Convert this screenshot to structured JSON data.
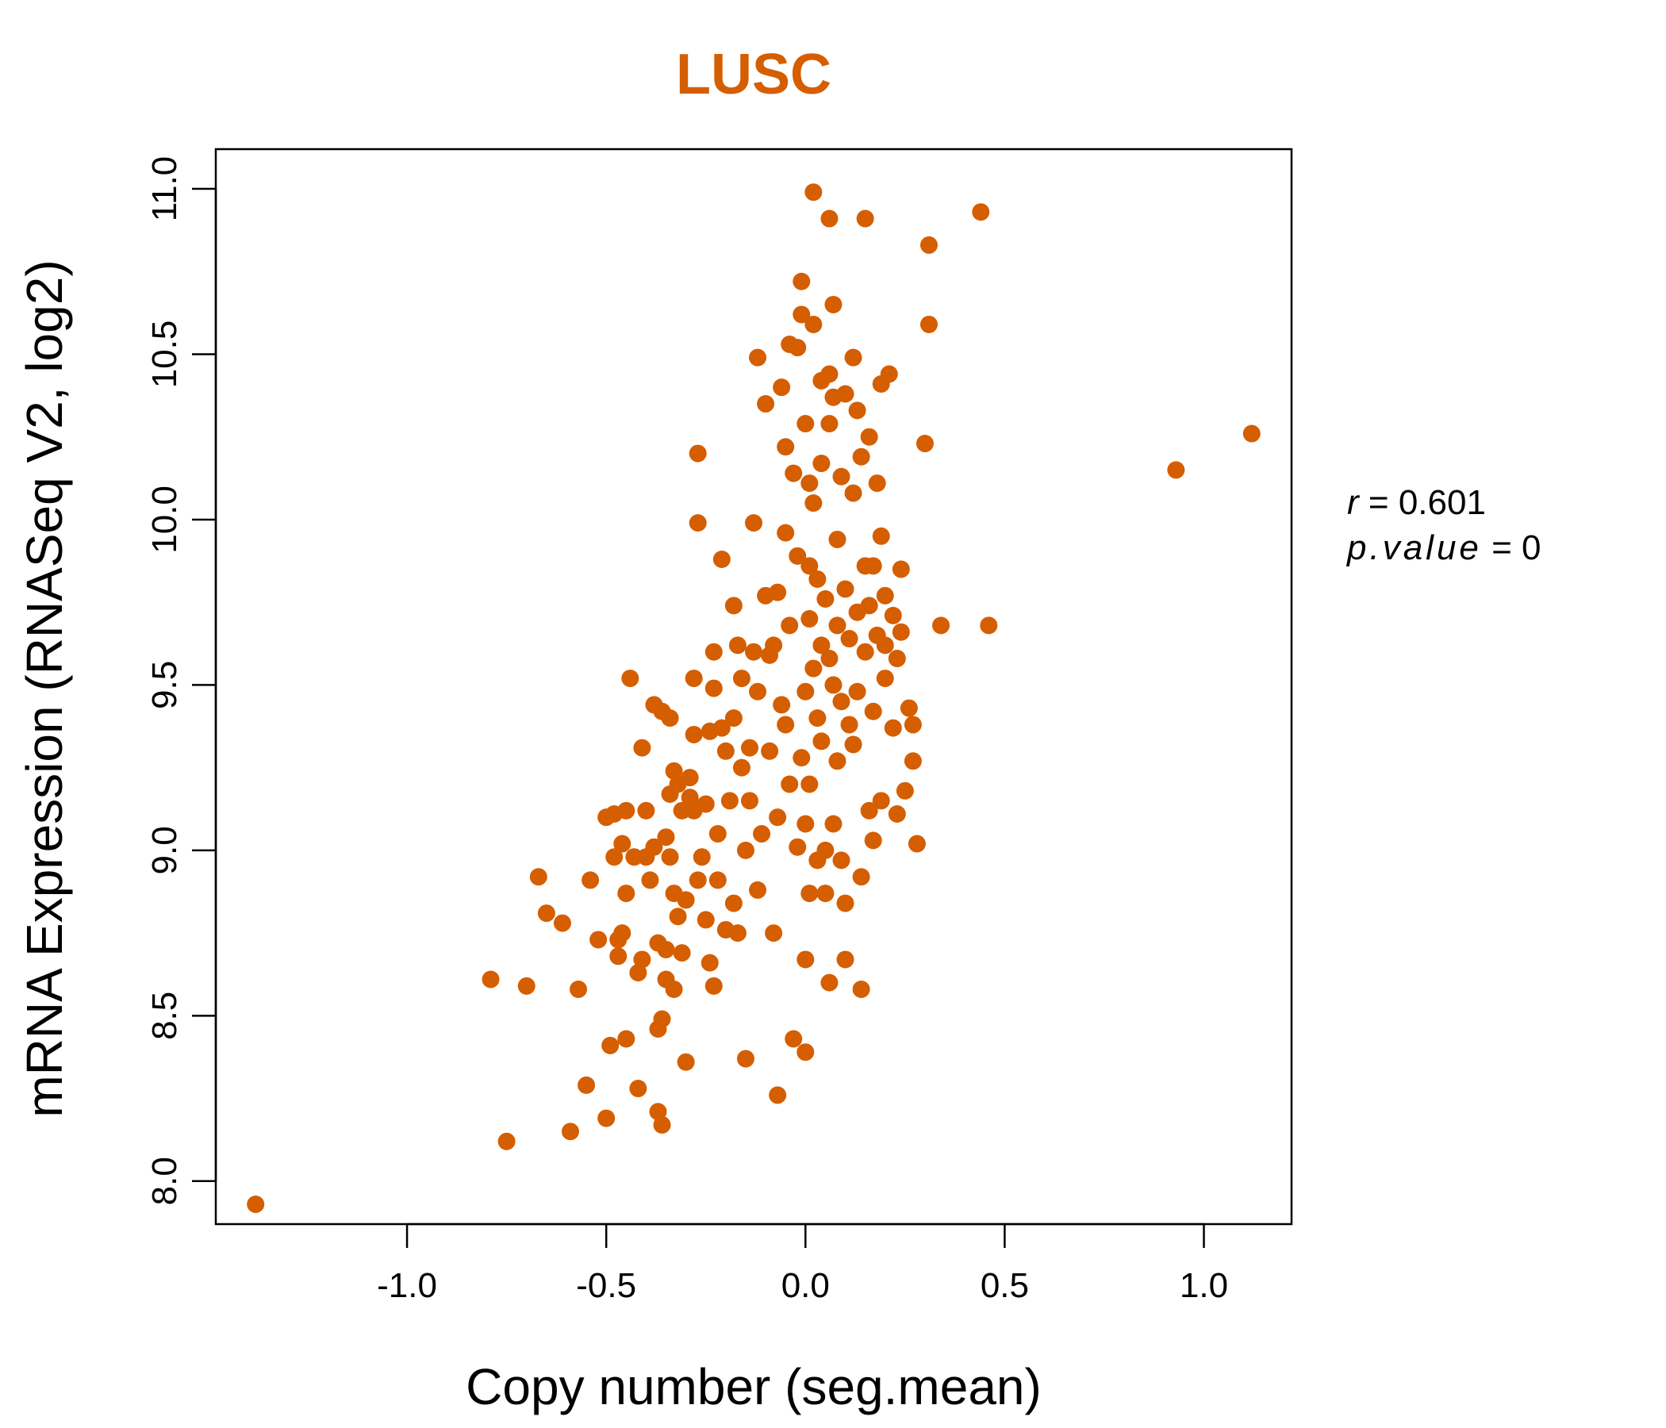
{
  "colors": {
    "point": "#D55E00",
    "title": "#D55E00",
    "axis": "#000000"
  },
  "chart_data": {
    "type": "scatter",
    "title": "LUSC",
    "xlabel": "Copy number (seg.mean)",
    "ylabel": "mRNA Expression (RNASeq V2, log2)",
    "xlim": [
      -1.48,
      1.22
    ],
    "ylim": [
      7.87,
      11.12
    ],
    "x_ticks": [
      "-1.0",
      "-0.5",
      "0.0",
      "0.5",
      "1.0"
    ],
    "y_ticks": [
      "8.0",
      "8.5",
      "9.0",
      "9.5",
      "10.0",
      "10.5",
      "11.0"
    ],
    "grid": false,
    "stats": {
      "r_label": "r",
      "r_value": "0.601",
      "p_label": "p.value",
      "p_value": "0"
    },
    "points": [
      [
        -1.38,
        7.93
      ],
      [
        -0.79,
        8.61
      ],
      [
        -0.75,
        8.12
      ],
      [
        -0.7,
        8.59
      ],
      [
        -0.67,
        8.92
      ],
      [
        -0.65,
        8.81
      ],
      [
        -0.61,
        8.78
      ],
      [
        -0.59,
        8.15
      ],
      [
        -0.57,
        8.58
      ],
      [
        -0.55,
        8.29
      ],
      [
        -0.54,
        8.91
      ],
      [
        -0.52,
        8.73
      ],
      [
        -0.5,
        8.19
      ],
      [
        -0.5,
        9.1
      ],
      [
        -0.49,
        8.41
      ],
      [
        -0.48,
        8.98
      ],
      [
        -0.48,
        9.11
      ],
      [
        -0.47,
        8.73
      ],
      [
        -0.47,
        8.68
      ],
      [
        -0.46,
        9.02
      ],
      [
        -0.46,
        8.75
      ],
      [
        -0.45,
        8.43
      ],
      [
        -0.45,
        8.87
      ],
      [
        -0.45,
        9.12
      ],
      [
        -0.44,
        9.52
      ],
      [
        -0.43,
        8.98
      ],
      [
        -0.42,
        8.63
      ],
      [
        -0.42,
        8.28
      ],
      [
        -0.41,
        9.31
      ],
      [
        -0.41,
        8.67
      ],
      [
        -0.4,
        8.98
      ],
      [
        -0.4,
        9.12
      ],
      [
        -0.39,
        8.91
      ],
      [
        -0.38,
        9.44
      ],
      [
        -0.38,
        9.01
      ],
      [
        -0.37,
        8.72
      ],
      [
        -0.37,
        8.46
      ],
      [
        -0.37,
        8.21
      ],
      [
        -0.36,
        8.17
      ],
      [
        -0.36,
        9.42
      ],
      [
        -0.36,
        8.49
      ],
      [
        -0.35,
        9.04
      ],
      [
        -0.35,
        8.7
      ],
      [
        -0.35,
        8.61
      ],
      [
        -0.34,
        9.17
      ],
      [
        -0.34,
        9.4
      ],
      [
        -0.34,
        8.98
      ],
      [
        -0.33,
        8.87
      ],
      [
        -0.33,
        8.58
      ],
      [
        -0.33,
        9.24
      ],
      [
        -0.32,
        8.8
      ],
      [
        -0.32,
        9.2
      ],
      [
        -0.31,
        9.12
      ],
      [
        -0.31,
        8.69
      ],
      [
        -0.3,
        8.36
      ],
      [
        -0.3,
        8.85
      ],
      [
        -0.29,
        9.22
      ],
      [
        -0.29,
        9.16
      ],
      [
        -0.28,
        9.35
      ],
      [
        -0.28,
        9.52
      ],
      [
        -0.28,
        9.12
      ],
      [
        -0.27,
        9.99
      ],
      [
        -0.27,
        10.2
      ],
      [
        -0.27,
        8.91
      ],
      [
        -0.26,
        8.98
      ],
      [
        -0.25,
        8.79
      ],
      [
        -0.25,
        9.14
      ],
      [
        -0.24,
        8.66
      ],
      [
        -0.24,
        9.36
      ],
      [
        -0.23,
        9.6
      ],
      [
        -0.23,
        9.49
      ],
      [
        -0.23,
        8.59
      ],
      [
        -0.22,
        9.05
      ],
      [
        -0.22,
        8.91
      ],
      [
        -0.21,
        9.88
      ],
      [
        -0.21,
        9.37
      ],
      [
        -0.2,
        9.3
      ],
      [
        -0.2,
        8.76
      ],
      [
        -0.19,
        9.15
      ],
      [
        -0.18,
        8.84
      ],
      [
        -0.18,
        9.4
      ],
      [
        -0.18,
        9.74
      ],
      [
        -0.17,
        8.75
      ],
      [
        -0.17,
        9.62
      ],
      [
        -0.16,
        9.52
      ],
      [
        -0.16,
        9.25
      ],
      [
        -0.15,
        8.37
      ],
      [
        -0.15,
        9.0
      ],
      [
        -0.14,
        9.15
      ],
      [
        -0.14,
        9.31
      ],
      [
        -0.13,
        9.99
      ],
      [
        -0.13,
        9.6
      ],
      [
        -0.12,
        8.88
      ],
      [
        -0.12,
        10.49
      ],
      [
        -0.12,
        9.48
      ],
      [
        -0.11,
        9.05
      ],
      [
        -0.1,
        10.35
      ],
      [
        -0.1,
        9.77
      ],
      [
        -0.09,
        9.3
      ],
      [
        -0.09,
        9.59
      ],
      [
        -0.08,
        8.75
      ],
      [
        -0.08,
        9.62
      ],
      [
        -0.07,
        9.1
      ],
      [
        -0.07,
        8.26
      ],
      [
        -0.07,
        9.78
      ],
      [
        -0.06,
        9.44
      ],
      [
        -0.06,
        10.4
      ],
      [
        -0.05,
        9.38
      ],
      [
        -0.05,
        9.96
      ],
      [
        -0.05,
        10.22
      ],
      [
        -0.04,
        9.68
      ],
      [
        -0.04,
        9.2
      ],
      [
        -0.04,
        10.53
      ],
      [
        -0.03,
        10.14
      ],
      [
        -0.03,
        8.43
      ],
      [
        -0.02,
        9.01
      ],
      [
        -0.02,
        9.89
      ],
      [
        -0.02,
        10.52
      ],
      [
        -0.01,
        10.72
      ],
      [
        -0.01,
        10.62
      ],
      [
        -0.01,
        9.28
      ],
      [
        0.0,
        10.29
      ],
      [
        0.0,
        9.48
      ],
      [
        0.0,
        9.08
      ],
      [
        0.0,
        8.39
      ],
      [
        0.0,
        8.67
      ],
      [
        0.01,
        9.86
      ],
      [
        0.01,
        10.11
      ],
      [
        0.01,
        9.7
      ],
      [
        0.01,
        9.2
      ],
      [
        0.01,
        8.87
      ],
      [
        0.02,
        10.59
      ],
      [
        0.02,
        10.99
      ],
      [
        0.02,
        9.55
      ],
      [
        0.02,
        10.05
      ],
      [
        0.03,
        9.82
      ],
      [
        0.03,
        9.4
      ],
      [
        0.03,
        8.97
      ],
      [
        0.04,
        10.42
      ],
      [
        0.04,
        9.62
      ],
      [
        0.04,
        9.33
      ],
      [
        0.04,
        10.17
      ],
      [
        0.05,
        9.76
      ],
      [
        0.05,
        8.87
      ],
      [
        0.05,
        9.0
      ],
      [
        0.06,
        10.29
      ],
      [
        0.06,
        10.44
      ],
      [
        0.06,
        9.58
      ],
      [
        0.06,
        8.6
      ],
      [
        0.06,
        10.91
      ],
      [
        0.07,
        10.37
      ],
      [
        0.07,
        9.5
      ],
      [
        0.07,
        9.08
      ],
      [
        0.07,
        10.65
      ],
      [
        0.08,
        9.94
      ],
      [
        0.08,
        9.68
      ],
      [
        0.08,
        9.27
      ],
      [
        0.09,
        10.13
      ],
      [
        0.09,
        9.45
      ],
      [
        0.09,
        8.97
      ],
      [
        0.1,
        10.38
      ],
      [
        0.1,
        9.79
      ],
      [
        0.1,
        8.84
      ],
      [
        0.1,
        8.67
      ],
      [
        0.11,
        9.64
      ],
      [
        0.11,
        9.38
      ],
      [
        0.12,
        10.49
      ],
      [
        0.12,
        10.08
      ],
      [
        0.12,
        9.32
      ],
      [
        0.13,
        9.72
      ],
      [
        0.13,
        10.33
      ],
      [
        0.13,
        9.48
      ],
      [
        0.14,
        10.19
      ],
      [
        0.14,
        8.92
      ],
      [
        0.14,
        8.58
      ],
      [
        0.15,
        9.86
      ],
      [
        0.15,
        10.91
      ],
      [
        0.15,
        9.6
      ],
      [
        0.16,
        10.25
      ],
      [
        0.16,
        9.12
      ],
      [
        0.16,
        9.74
      ],
      [
        0.17,
        9.86
      ],
      [
        0.17,
        9.42
      ],
      [
        0.17,
        9.03
      ],
      [
        0.18,
        10.11
      ],
      [
        0.18,
        9.65
      ],
      [
        0.19,
        10.41
      ],
      [
        0.19,
        9.95
      ],
      [
        0.19,
        9.15
      ],
      [
        0.2,
        9.77
      ],
      [
        0.2,
        9.62
      ],
      [
        0.2,
        9.52
      ],
      [
        0.21,
        10.44
      ],
      [
        0.22,
        9.71
      ],
      [
        0.22,
        9.37
      ],
      [
        0.23,
        9.11
      ],
      [
        0.23,
        9.58
      ],
      [
        0.24,
        9.85
      ],
      [
        0.24,
        9.66
      ],
      [
        0.25,
        9.18
      ],
      [
        0.26,
        9.43
      ],
      [
        0.27,
        9.27
      ],
      [
        0.27,
        9.38
      ],
      [
        0.28,
        9.02
      ],
      [
        0.3,
        10.23
      ],
      [
        0.31,
        10.83
      ],
      [
        0.31,
        10.59
      ],
      [
        0.34,
        9.68
      ],
      [
        0.44,
        10.93
      ],
      [
        0.46,
        9.68
      ],
      [
        0.93,
        10.15
      ],
      [
        1.12,
        10.26
      ]
    ]
  }
}
